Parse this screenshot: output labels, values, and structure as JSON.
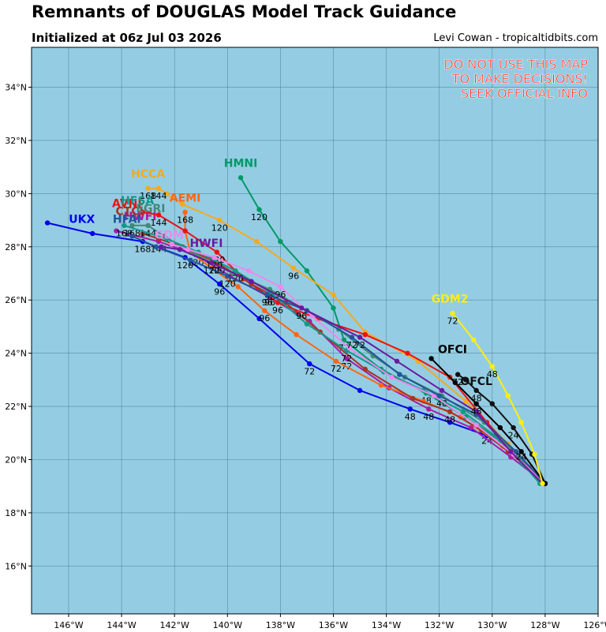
{
  "header": {
    "title": "Remnants of DOUGLAS Model Track Guidance",
    "subtitle": "Initialized at 06z Jul 03 2026",
    "credit": "Levi Cowan - tropicaltidbits.com"
  },
  "warning": [
    "DO NOT USE THIS MAP",
    "TO MAKE DECISIONS!",
    "SEEK OFFICIAL INFO"
  ],
  "colors": {
    "ocean": "#94cde3",
    "grid": "#3f6f88",
    "warning": "#ff2a1a"
  },
  "chart_data": {
    "type": "map-track",
    "lon_range": [
      -147.4,
      -126
    ],
    "lat_range": [
      14.2,
      35.5
    ],
    "lon_ticks": [
      -146,
      -144,
      -142,
      -140,
      -138,
      -136,
      -134,
      -132,
      -130,
      -128,
      -126
    ],
    "lat_ticks": [
      16,
      18,
      20,
      22,
      24,
      26,
      28,
      30,
      32,
      34
    ],
    "lon_labels": [
      "146°W",
      "144°W",
      "142°W",
      "140°W",
      "138°W",
      "136°W",
      "134°W",
      "132°W",
      "130°W",
      "128°W",
      "126°W"
    ],
    "lat_labels": [
      "16°N",
      "18°N",
      "20°N",
      "22°N",
      "24°N",
      "26°N",
      "28°N",
      "30°N",
      "32°N",
      "34°N"
    ],
    "tracks": [
      {
        "name": "UKX",
        "color": "#0000ee",
        "name_at": [
          -145.5,
          28.9
        ],
        "points": [
          [
            -128,
            19.1
          ],
          [
            -129.2,
            20.2
          ],
          [
            -130.2,
            20.9
          ],
          [
            -131.6,
            21.4
          ],
          [
            -133.1,
            21.9
          ],
          [
            -135,
            22.6
          ],
          [
            -136.9,
            23.6
          ],
          [
            -138.8,
            25.3
          ],
          [
            -140.3,
            26.6
          ],
          [
            -141.6,
            27.6
          ],
          [
            -143.2,
            28.2
          ],
          [
            -145.1,
            28.5
          ],
          [
            -146.8,
            28.9
          ]
        ],
        "labels": [
          [
            "24",
            -130.2,
            20.6
          ],
          [
            "48",
            -133.1,
            21.5
          ],
          [
            "72",
            -136.9,
            23.2
          ],
          [
            "96",
            -140.3,
            26.2
          ],
          [
            "120",
            -141.6,
            27.2
          ],
          [
            "168",
            -143.2,
            27.8
          ]
        ]
      },
      {
        "name": "HWFI",
        "color": "#aa1aaa",
        "name_at": [
          -143.3,
          29.0
        ],
        "points": [
          [
            -128,
            19.1
          ],
          [
            -129.3,
            20.1
          ],
          [
            -130.8,
            21.2
          ],
          [
            -132.4,
            21.9
          ],
          [
            -133.9,
            22.7
          ],
          [
            -135.5,
            23.8
          ],
          [
            -136.9,
            25.2
          ],
          [
            -138.4,
            26.1
          ],
          [
            -139.9,
            26.9
          ],
          [
            -141.2,
            27.7
          ],
          [
            -142.6,
            28.2
          ],
          [
            -144.2,
            28.6
          ]
        ],
        "labels": [
          [
            "48",
            -132.4,
            21.5
          ],
          [
            "72",
            -135.5,
            23.4
          ],
          [
            "96",
            -138.4,
            25.8
          ],
          [
            "120",
            -141.2,
            27.3
          ],
          [
            "144",
            -142.6,
            27.8
          ]
        ]
      },
      {
        "name": "HMNI",
        "color": "#009966",
        "name_at": [
          -139.5,
          31.0
        ],
        "points": [
          [
            -128.1,
            19.1
          ],
          [
            -128.8,
            19.8
          ],
          [
            -129.7,
            20.7
          ],
          [
            -131,
            21.6
          ],
          [
            -132.5,
            22.5
          ],
          [
            -134.2,
            23.4
          ],
          [
            -135.6,
            24.5
          ],
          [
            -136,
            25.7
          ],
          [
            -137,
            27.1
          ],
          [
            -138,
            28.2
          ],
          [
            -138.8,
            29.4
          ],
          [
            -139.5,
            30.6
          ]
        ],
        "labels": [
          [
            "48",
            -132.5,
            22.1
          ],
          [
            "72",
            -135.6,
            24.1
          ],
          [
            "120",
            -138.8,
            29.0
          ]
        ]
      },
      {
        "name": "HCCA",
        "color": "#f2aa22",
        "name_at": [
          -143,
          30.6
        ],
        "points": [
          [
            -128,
            19.1
          ],
          [
            -129.4,
            20.6
          ],
          [
            -131,
            22.2
          ],
          [
            -132.8,
            23.7
          ],
          [
            -134.8,
            24.8
          ],
          [
            -136,
            26.2
          ],
          [
            -137.5,
            27.2
          ],
          [
            -138.9,
            28.2
          ],
          [
            -140.3,
            29
          ],
          [
            -141.7,
            29.6
          ],
          [
            -142.3,
            30
          ],
          [
            -142.6,
            30.2
          ],
          [
            -143,
            30.2
          ]
        ],
        "labels": [
          [
            "96",
            -137.5,
            26.8
          ],
          [
            "120",
            -140.3,
            28.6
          ],
          [
            "144",
            -142.6,
            29.8
          ],
          [
            "168",
            -143,
            29.8
          ]
        ]
      },
      {
        "name": "AEMI",
        "color": "#ff6611",
        "name_at": [
          -141.6,
          29.7
        ],
        "points": [
          [
            -128,
            19.1
          ],
          [
            -129.6,
            20.5
          ],
          [
            -131.2,
            21.6
          ],
          [
            -132.6,
            22.2
          ],
          [
            -134.2,
            22.8
          ],
          [
            -135.9,
            23.7
          ],
          [
            -137.4,
            24.7
          ],
          [
            -138.6,
            25.6
          ],
          [
            -139.6,
            26.5
          ],
          [
            -140.6,
            27.2
          ],
          [
            -141.4,
            27.8
          ],
          [
            -141.6,
            28.6
          ],
          [
            -141.6,
            29.3
          ]
        ],
        "labels": [
          [
            "72",
            -135.9,
            23.3
          ],
          [
            "96",
            -138.6,
            25.2
          ],
          [
            "168",
            -141.6,
            28.9
          ]
        ]
      },
      {
        "name": "AVNI",
        "color": "#ee1111",
        "name_at": [
          -143.8,
          29.5
        ],
        "points": [
          [
            -128,
            19.1
          ],
          [
            -129.1,
            20.2
          ],
          [
            -130.2,
            21.4
          ],
          [
            -131.6,
            23.1
          ],
          [
            -133.2,
            24
          ],
          [
            -134.8,
            24.7
          ],
          [
            -136.6,
            25.3
          ],
          [
            -138.1,
            25.9
          ],
          [
            -139.4,
            26.8
          ],
          [
            -140.4,
            27.8
          ],
          [
            -141.6,
            28.6
          ],
          [
            -142.6,
            29.2
          ],
          [
            -143.2,
            29.3
          ]
        ],
        "labels": [
          [
            "96",
            -138.1,
            25.5
          ],
          [
            "120",
            -140.4,
            27.4
          ],
          [
            "144",
            -142.6,
            28.8
          ]
        ]
      },
      {
        "name": "CTCI",
        "color": "#aa3322",
        "name_at": [
          -143.7,
          29.2
        ],
        "points": [
          [
            -128,
            19.1
          ],
          [
            -128.6,
            19.7
          ],
          [
            -129.4,
            20.3
          ],
          [
            -130.4,
            21.1
          ],
          [
            -131.6,
            21.8
          ],
          [
            -133,
            22.3
          ],
          [
            -134.8,
            23.4
          ],
          [
            -136.5,
            24.8
          ],
          [
            -137.8,
            25.9
          ],
          [
            -139.1,
            26.6
          ],
          [
            -140.4,
            27.4
          ],
          [
            -141.7,
            28
          ],
          [
            -142.6,
            28.3
          ],
          [
            -143.2,
            28.5
          ]
        ],
        "labels": [
          [
            "48",
            -131.6,
            21.4
          ],
          [
            "120",
            -140.4,
            27.0
          ]
        ]
      },
      {
        "name": "EGRI",
        "color": "#448877",
        "name_at": [
          -142.9,
          29.3
        ],
        "points": [
          [
            -128.1,
            19.1
          ],
          [
            -129,
            20.1
          ],
          [
            -130.3,
            21.4
          ],
          [
            -131.9,
            22.4
          ],
          [
            -133.3,
            23.1
          ],
          [
            -134.5,
            23.9
          ],
          [
            -135.8,
            24.9
          ],
          [
            -137,
            25.6
          ],
          [
            -138.4,
            26.4
          ],
          [
            -139.8,
            27
          ],
          [
            -141.2,
            27.7
          ],
          [
            -142.4,
            28.4
          ],
          [
            -143,
            28.8
          ],
          [
            -143.6,
            28.8
          ]
        ],
        "labels": [
          [
            "48",
            -131.9,
            22.0
          ],
          [
            "96",
            -138.4,
            26.0
          ],
          [
            "144",
            -143,
            28.4
          ],
          [
            "168",
            -143.6,
            28.4
          ]
        ]
      },
      {
        "name": "HFSA",
        "color": "#119988",
        "name_at": [
          -143.4,
          29.6
        ],
        "points": [
          [
            -128.2,
            19.1
          ],
          [
            -128.9,
            19.9
          ],
          [
            -129.9,
            20.9
          ],
          [
            -131.1,
            21.8
          ],
          [
            -132.6,
            22.6
          ],
          [
            -134.1,
            23.3
          ],
          [
            -135.5,
            24.1
          ],
          [
            -137,
            25.1
          ],
          [
            -138.4,
            26.3
          ],
          [
            -139.7,
            27.1
          ],
          [
            -141.1,
            27.8
          ],
          [
            -142.3,
            28.3
          ],
          [
            -143.9,
            28.8
          ]
        ],
        "labels": [
          [
            "72",
            -135.5,
            23.7
          ],
          [
            "120",
            -139.7,
            26.7
          ],
          [
            "168",
            -143.9,
            28.4
          ]
        ]
      },
      {
        "name": "GDM",
        "color": "#ee88ee",
        "name_at": [
          -142.2,
          28.3
        ],
        "points": [
          [
            -128,
            19.1
          ],
          [
            -129.2,
            20.2
          ],
          [
            -130.6,
            21.3
          ],
          [
            -132.2,
            22.4
          ],
          [
            -133.8,
            23.1
          ],
          [
            -135.4,
            24.2
          ],
          [
            -136.8,
            25.4
          ],
          [
            -138,
            26.5
          ],
          [
            -139.2,
            27.1
          ],
          [
            -140.5,
            27.6
          ],
          [
            -141.5,
            27.9
          ],
          [
            -142.1,
            28.1
          ]
        ],
        "labels": [
          [
            "96",
            -138,
            26.1
          ],
          [
            "120",
            -140.5,
            27.2
          ]
        ]
      },
      {
        "name": "HFAI",
        "color": "#225599",
        "name_at": [
          -143.8,
          28.9
        ],
        "points": [
          [
            -128,
            19.1
          ],
          [
            -129.1,
            20.3
          ],
          [
            -130.6,
            21.7
          ],
          [
            -132,
            22.4
          ],
          [
            -133.5,
            23.2
          ],
          [
            -135.3,
            24.6
          ],
          [
            -137,
            25.6
          ],
          [
            -138.5,
            26.2
          ],
          [
            -140,
            26.9
          ],
          [
            -141.4,
            27.5
          ],
          [
            -142.7,
            28
          ],
          [
            -143.6,
            28.4
          ]
        ],
        "labels": [
          [
            "72",
            -135.3,
            24.2
          ],
          [
            "96",
            -138.5,
            25.8
          ],
          [
            "120",
            -140,
            26.5
          ]
        ]
      },
      {
        "name": "HWFI",
        "color": "#6a1aa0",
        "name_at": [
          -140.8,
          28.0
        ],
        "points": [
          [
            -128.1,
            19.1
          ],
          [
            -129.3,
            20.3
          ],
          [
            -130.6,
            21.8
          ],
          [
            -131.9,
            22.6
          ],
          [
            -133.6,
            23.7
          ],
          [
            -135,
            24.6
          ],
          [
            -137.2,
            25.7
          ],
          [
            -139.1,
            26.7
          ],
          [
            -140.6,
            27.4
          ],
          [
            -141.8,
            27.9
          ],
          [
            -142.5,
            28
          ]
        ],
        "labels": [
          [
            "72",
            -135,
            24.2
          ],
          [
            "96",
            -137.2,
            25.3
          ],
          [
            "120",
            -140.6,
            27.0
          ]
        ]
      },
      {
        "name": "OFCL",
        "color": "#111111",
        "name_at": [
          -130.6,
          22.8
        ],
        "points": [
          [
            -128,
            19.1
          ],
          [
            -128.5,
            20.2
          ],
          [
            -129.2,
            21.2
          ],
          [
            -130,
            22.1
          ],
          [
            -130.6,
            22.6
          ],
          [
            -131,
            23
          ],
          [
            -131.3,
            23.2
          ]
        ],
        "labels": [
          [
            "24",
            -129.2,
            20.8
          ],
          [
            "48",
            -130.6,
            22.2
          ],
          [
            "72",
            -131.3,
            22.8
          ]
        ]
      },
      {
        "name": "OFCI",
        "color": "#000000",
        "name_at": [
          -131.5,
          24.0
        ],
        "points": [
          [
            -128,
            19.1
          ],
          [
            -128.9,
            20.3
          ],
          [
            -129.7,
            21.2
          ],
          [
            -130.6,
            22.1
          ],
          [
            -131.4,
            22.9
          ],
          [
            -132.3,
            23.8
          ]
        ],
        "labels": [
          [
            "24",
            -128.9,
            20.0
          ],
          [
            "48",
            -130.6,
            21.7
          ]
        ]
      },
      {
        "name": "GDM2",
        "color": "#ffee11",
        "name_at": [
          -131.6,
          25.9
        ],
        "points": [
          [
            -128.1,
            19.1
          ],
          [
            -128.4,
            20.2
          ],
          [
            -128.9,
            21.4
          ],
          [
            -129.4,
            22.4
          ],
          [
            -130,
            23.5
          ],
          [
            -130.7,
            24.5
          ],
          [
            -131.5,
            25.5
          ]
        ],
        "labels": [
          [
            "48",
            -130,
            23.1
          ],
          [
            "72",
            -131.5,
            25.1
          ]
        ]
      }
    ]
  }
}
